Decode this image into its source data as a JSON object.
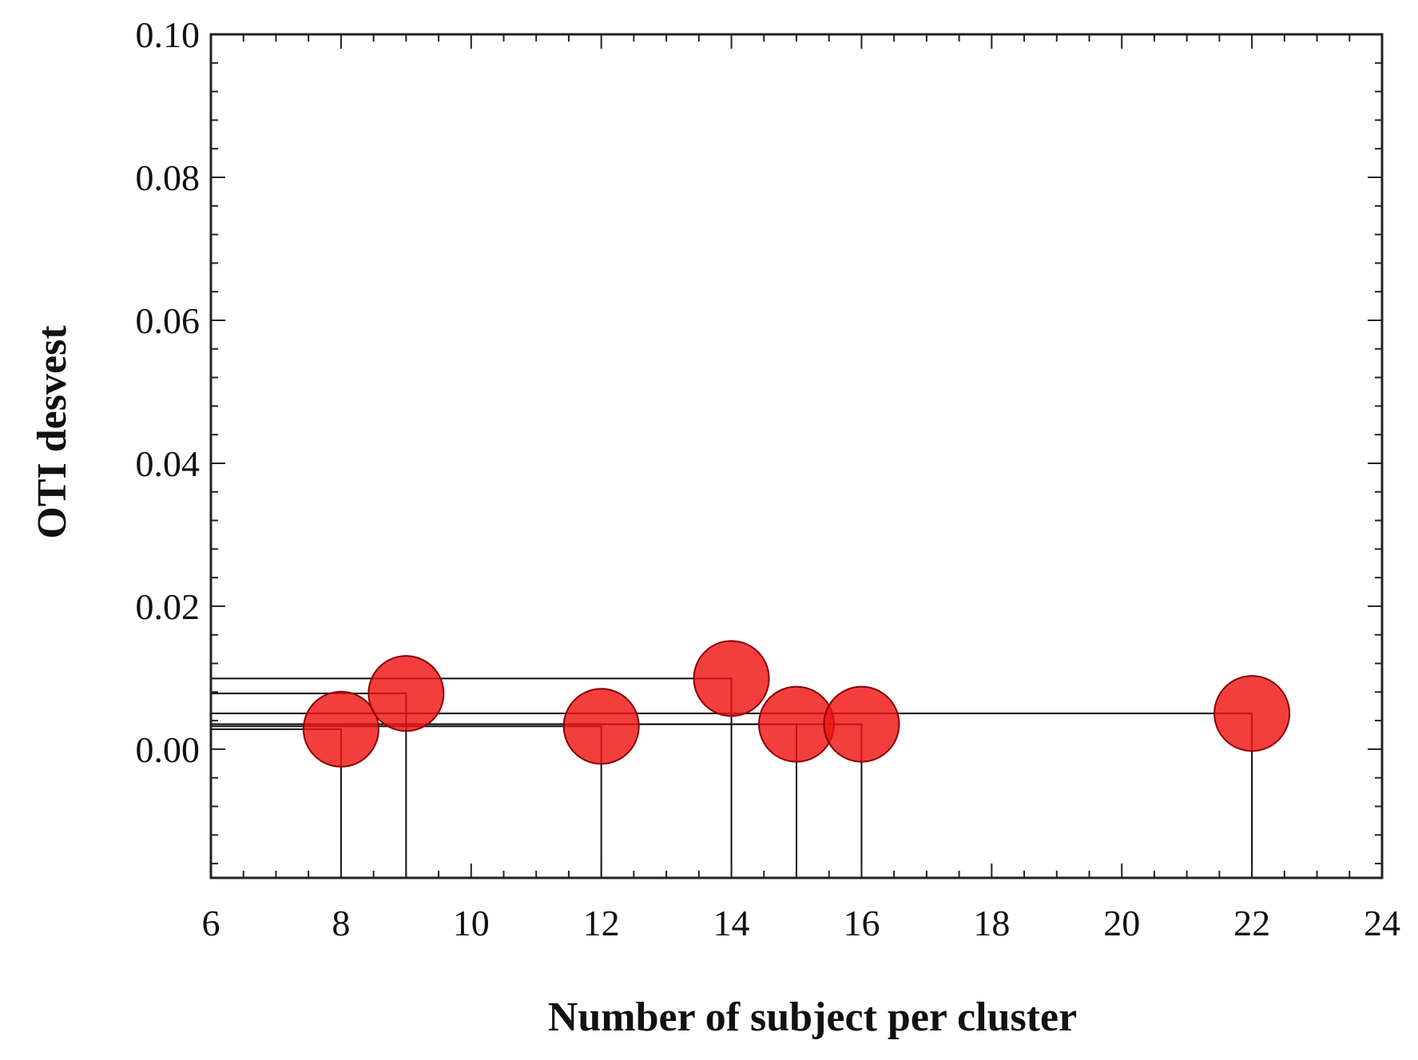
{
  "chart_data": {
    "type": "scatter",
    "xlabel": "Number of subject per cluster",
    "ylabel": "OTI desvest",
    "xlim": [
      6,
      24
    ],
    "ylim": [
      -0.018,
      0.1
    ],
    "x_ticks": [
      6,
      8,
      10,
      12,
      14,
      16,
      18,
      20,
      22,
      24
    ],
    "x_tick_labels": [
      "6",
      "8",
      "10",
      "12",
      "14",
      "16",
      "18",
      "20",
      "22",
      "24"
    ],
    "y_ticks": [
      0.0,
      0.02,
      0.04,
      0.06,
      0.08,
      0.1
    ],
    "y_tick_labels": [
      "0.00",
      "0.02",
      "0.04",
      "0.06",
      "0.08",
      "0.10"
    ],
    "grid": false,
    "marker_color": "#f01414",
    "points": [
      {
        "x": 8,
        "y": 0.0028
      },
      {
        "x": 9,
        "y": 0.0078
      },
      {
        "x": 12,
        "y": 0.0032
      },
      {
        "x": 14,
        "y": 0.0099
      },
      {
        "x": 15,
        "y": 0.0035
      },
      {
        "x": 16,
        "y": 0.0035
      },
      {
        "x": 22,
        "y": 0.005
      }
    ]
  }
}
